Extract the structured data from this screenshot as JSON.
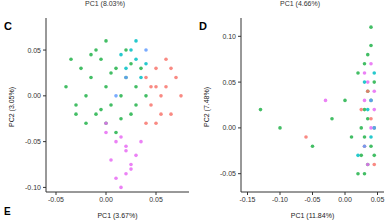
{
  "chart_data": [
    {
      "type": "scatter",
      "title": "C",
      "x_label": "PC1 (3.67%)",
      "y_label": "PC2 (3.05%)",
      "grid": false,
      "xlim": [
        -0.06,
        0.083
      ],
      "xticks": [
        -0.05,
        {
          "value": 0,
          "label": "0.00"
        },
        0.05
      ],
      "ylim": [
        -0.105,
        0.085
      ],
      "yticks": [
        {
          "value": -0.1,
          "label": "-0.10"
        },
        -0.05,
        {
          "value": 0,
          "label": "0.00"
        },
        0.05
      ],
      "series": [
        {
          "color": "#22b34a",
          "x": [
            -0.04,
            -0.03,
            -0.025,
            -0.02,
            -0.015,
            -0.01,
            -0.005,
            0,
            0.005,
            0.01,
            0.015,
            0.02,
            0.025,
            0.03,
            0.035,
            -0.035,
            -0.02,
            -0.01,
            0,
            0.01,
            0.02,
            0.03,
            -0.03,
            -0.015,
            0.005,
            0.015,
            0.025,
            -0.005,
            0.0,
            0.04
          ],
          "y": [
            0.01,
            -0.01,
            0.03,
            0.0,
            0.02,
            -0.02,
            0.04,
            0.01,
            -0.01,
            0.03,
            0.0,
            0.02,
            -0.02,
            0.01,
            0.03,
            0.04,
            -0.03,
            0.05,
            -0.03,
            -0.04,
            0.05,
            -0.01,
            -0.02,
            0.045,
            0.025,
            -0.025,
            0.035,
            -0.015,
            0.06,
            0.0
          ]
        },
        {
          "color": "#f8766d",
          "x": [
            0.04,
            0.045,
            0.05,
            0.055,
            0.06,
            0.065,
            0.07,
            0.05,
            0.06,
            0.045,
            0.055,
            0.065,
            0.075,
            0.04,
            0.05
          ],
          "y": [
            0.02,
            -0.01,
            0.03,
            0.0,
            0.01,
            -0.02,
            0.02,
            -0.03,
            0.04,
            0.01,
            -0.02,
            0.03,
            0.0,
            -0.03,
            0.01
          ]
        },
        {
          "color": "#e76bf3",
          "x": [
            0.0,
            0.01,
            0.02,
            0.005,
            0.015,
            0.025,
            0.01,
            0.02,
            0.03,
            0.0,
            0.015,
            0.025,
            0.035,
            0.02
          ],
          "y": [
            -0.04,
            -0.05,
            -0.06,
            -0.07,
            -0.045,
            -0.08,
            -0.09,
            -0.055,
            -0.065,
            -0.03,
            -0.1,
            -0.075,
            -0.05,
            -0.085
          ]
        },
        {
          "color": "#00bfc4",
          "x": [
            0.02,
            0.03,
            0.025,
            0.035,
            0.015,
            0.04,
            0.03
          ],
          "y": [
            0.03,
            0.04,
            0.05,
            0.02,
            0.045,
            0.035,
            0.06
          ]
        },
        {
          "color": "#619cff",
          "x": [
            0.01,
            0.02,
            0.04
          ],
          "y": [
            0.0,
            0.02,
            0.05
          ]
        }
      ]
    },
    {
      "type": "scatter",
      "title": "D",
      "x_label": "PC1 (11.84%)",
      "y_label": "PC2 (7.48%)",
      "grid": false,
      "xlim": [
        -0.16,
        0.06
      ],
      "xticks": [
        -0.15,
        {
          "value": -0.1,
          "label": "-0.10"
        },
        -0.05,
        {
          "value": 0,
          "label": "0.00"
        },
        0.05
      ],
      "ylim": [
        -0.07,
        0.12
      ],
      "yticks": [
        -0.05,
        {
          "value": 0,
          "label": "0.00"
        },
        0.05,
        {
          "value": 0.1,
          "label": "0.10"
        }
      ],
      "series": [
        {
          "color": "#22b34a",
          "x": [
            0.02,
            0.025,
            0.03,
            0.035,
            0.04,
            0.045,
            0.03,
            0.035,
            0.04,
            0.025,
            0.03,
            0.045,
            0.04,
            0.035,
            0.02,
            -0.02,
            -0.05,
            -0.1,
            -0.13,
            0.0,
            0.01,
            0.04,
            0.03,
            0.045,
            0.035
          ],
          "y": [
            -0.05,
            -0.03,
            -0.01,
            0.01,
            0.03,
            0.05,
            0.07,
            -0.04,
            -0.02,
            0.0,
            0.02,
            -0.03,
            0.09,
            0.04,
            0.06,
            0.01,
            -0.02,
            0.0,
            0.02,
            0.03,
            -0.01,
            0.11,
            -0.05,
            0.0,
            0.08
          ]
        },
        {
          "color": "#e76bf3",
          "x": [
            0.03,
            0.035,
            0.04,
            0.045,
            0.03,
            0.04,
            0.035,
            -0.03,
            0.045
          ],
          "y": [
            0.06,
            0.05,
            0.07,
            0.02,
            0.03,
            0.0,
            -0.04,
            0.03,
            0.04
          ]
        },
        {
          "color": "#f8766d",
          "x": [
            0.03,
            0.04,
            0.035,
            0.045,
            0.025,
            -0.06
          ],
          "y": [
            -0.02,
            0.01,
            0.04,
            -0.04,
            0.02,
            -0.01
          ]
        },
        {
          "color": "#00bfc4",
          "x": [
            0.035,
            0.04,
            0.03,
            0.045,
            0.02
          ],
          "y": [
            0.02,
            -0.01,
            0.05,
            0.06,
            -0.03
          ]
        },
        {
          "color": "#619cff",
          "x": [
            0.04,
            0.03,
            0.045
          ],
          "y": [
            0.03,
            -0.02,
            0.0
          ]
        }
      ]
    }
  ],
  "annotations": [
    "PC1 (8.03%)",
    "PC1 (4.66%)",
    "E"
  ]
}
